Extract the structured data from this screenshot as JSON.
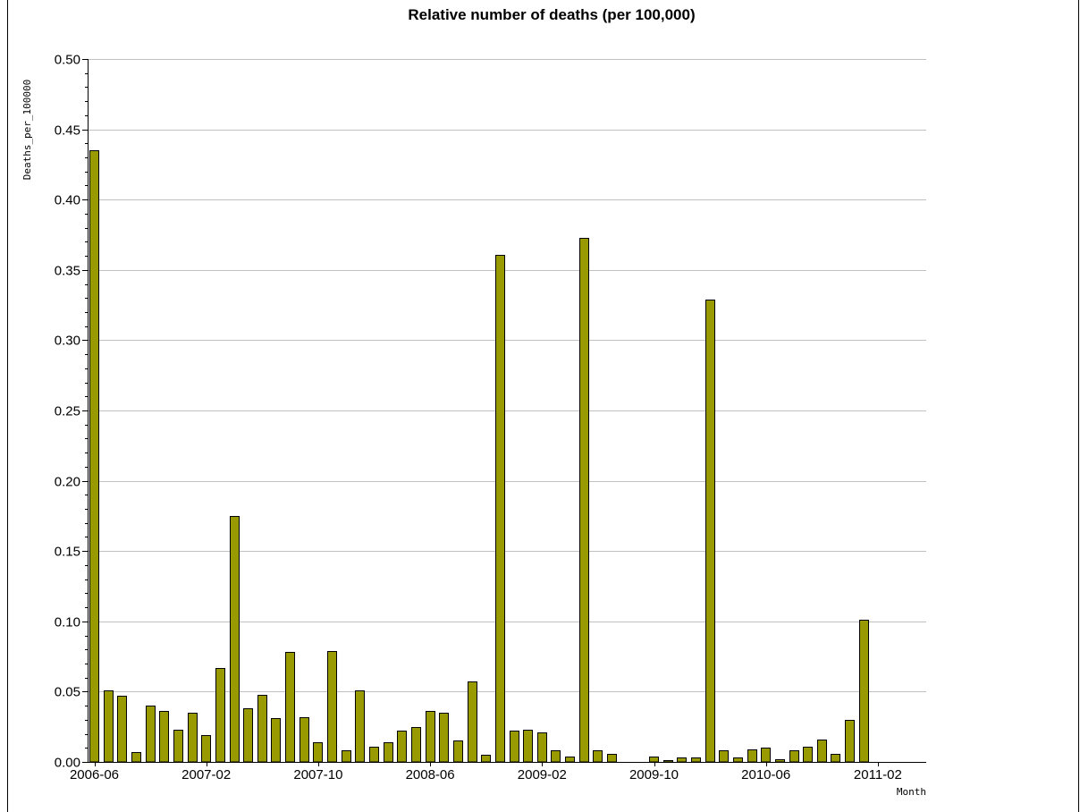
{
  "chart_data": {
    "type": "bar",
    "title": "Relative number of deaths (per 100,000)",
    "xlabel": "Month",
    "ylabel": "Deaths_per_100000",
    "ylim": [
      0,
      0.5
    ],
    "yticks": [
      "0.00",
      "0.05",
      "0.10",
      "0.15",
      "0.20",
      "0.25",
      "0.30",
      "0.35",
      "0.40",
      "0.45",
      "0.50"
    ],
    "xtick_labels": [
      "2006-06",
      "2007-02",
      "2007-10",
      "2008-06",
      "2009-02",
      "2009-10",
      "2010-06",
      "2011-02"
    ],
    "grid": true,
    "legend": "none",
    "bar_color": "#999900",
    "categories": [
      "2006-06",
      "2006-07",
      "2006-08",
      "2006-09",
      "2006-10",
      "2006-11",
      "2006-12",
      "2007-01",
      "2007-02",
      "2007-03",
      "2007-04",
      "2007-05",
      "2007-06",
      "2007-07",
      "2007-08",
      "2007-09",
      "2007-10",
      "2007-11",
      "2007-12",
      "2008-01",
      "2008-02",
      "2008-03",
      "2008-04",
      "2008-05",
      "2008-06",
      "2008-07",
      "2008-08",
      "2008-09",
      "2008-10",
      "2008-11",
      "2008-12",
      "2009-01",
      "2009-02",
      "2009-03",
      "2009-04",
      "2009-05",
      "2009-06",
      "2009-07",
      "2009-08",
      "2009-09",
      "2009-10",
      "2009-11",
      "2009-12",
      "2010-01",
      "2010-02",
      "2010-03",
      "2010-04",
      "2010-05",
      "2010-06",
      "2010-07",
      "2010-08",
      "2010-09",
      "2010-10",
      "2010-11",
      "2010-12",
      "2011-01"
    ],
    "values": [
      0.435,
      0.051,
      0.047,
      0.007,
      0.04,
      0.036,
      0.023,
      0.035,
      0.019,
      0.067,
      0.175,
      0.038,
      0.048,
      0.031,
      0.078,
      0.032,
      0.014,
      0.079,
      0.008,
      0.051,
      0.011,
      0.014,
      0.022,
      0.025,
      0.036,
      0.035,
      0.015,
      0.057,
      0.005,
      0.361,
      0.022,
      0.023,
      0.021,
      0.008,
      0.004,
      0.373,
      0.008,
      0.006,
      0,
      0,
      0.004,
      0.001,
      0.003,
      0.003,
      0.329,
      0.008,
      0.003,
      0.009,
      0.01,
      0.002,
      0.008,
      0.011,
      0.016,
      0.006,
      0.03,
      0.101
    ]
  }
}
